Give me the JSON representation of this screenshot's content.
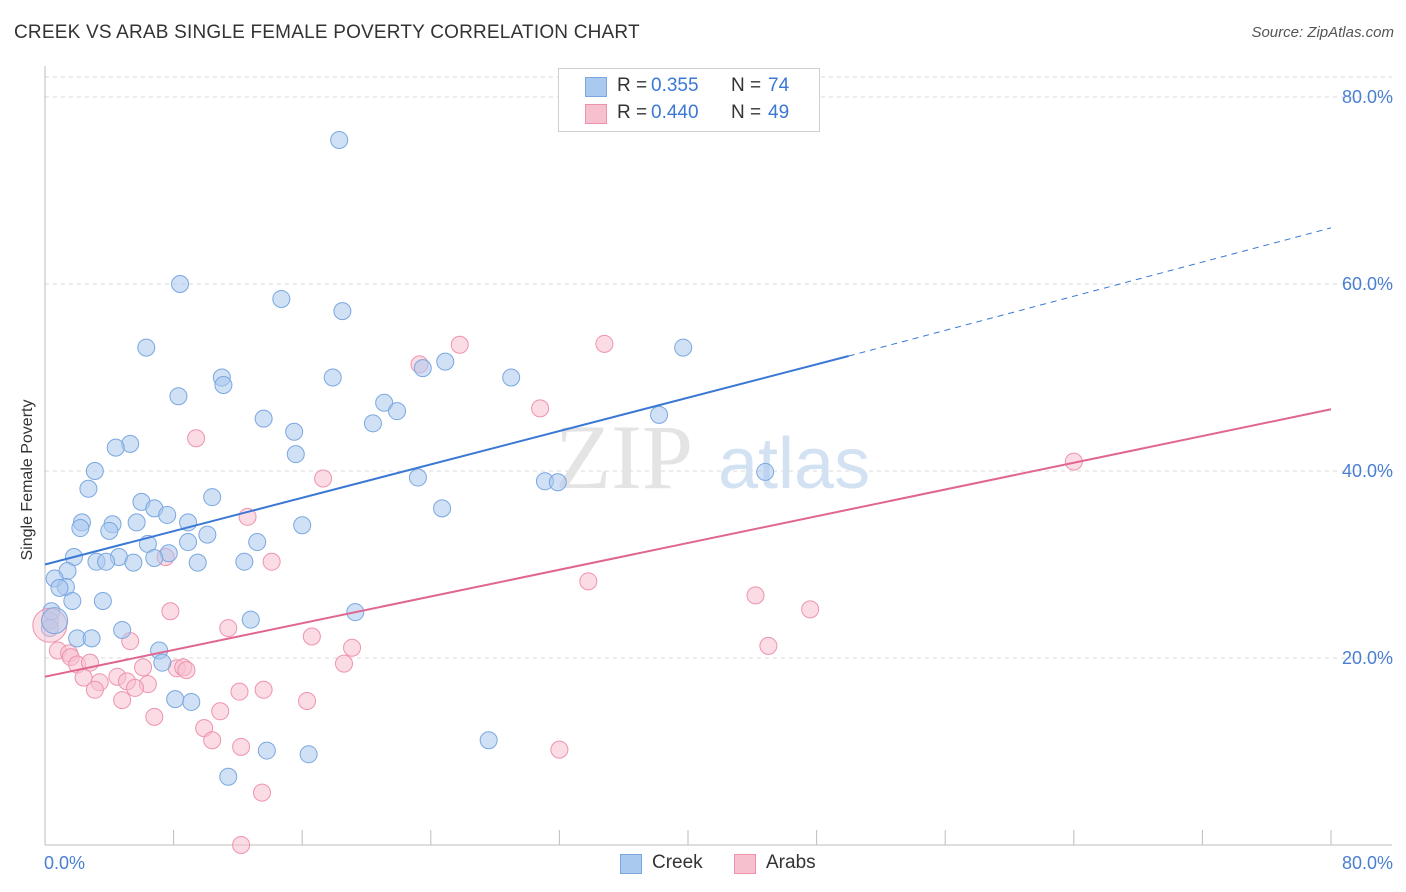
{
  "title": "CREEK VS ARAB SINGLE FEMALE POVERTY CORRELATION CHART",
  "source": "Source: ZipAtlas.com",
  "watermark": {
    "zip": "ZIP",
    "atlas": "atlas"
  },
  "legend_stats": [
    {
      "r_label": "R =",
      "r_value": "0.355",
      "n_label": "N =",
      "n_value": "74",
      "color": "#aac9ef",
      "stroke": "#7aa7e0"
    },
    {
      "r_label": "R =",
      "r_value": "0.440",
      "n_label": "N =",
      "n_value": "49",
      "color": "#f7c0cf",
      "stroke": "#ef93ad"
    }
  ],
  "bottom_legend": [
    {
      "label": "Creek",
      "color": "#aac9ef",
      "stroke": "#7aa7e0"
    },
    {
      "label": "Arabs",
      "color": "#f7c0cf",
      "stroke": "#ef93ad"
    }
  ],
  "chart_data": {
    "type": "scatter",
    "title": "CREEK VS ARAB SINGLE FEMALE POVERTY CORRELATION CHART",
    "xlabel": "",
    "ylabel": "Single Female Poverty",
    "xlim": [
      0,
      80
    ],
    "ylim": [
      0,
      80
    ],
    "x_tick_labels": [
      "0.0%",
      "80.0%"
    ],
    "y_ticks": [
      20,
      40,
      60,
      80
    ],
    "y_tick_labels": [
      "20.0%",
      "40.0%",
      "60.0%",
      "80.0%"
    ],
    "grid": true,
    "legend": "top-center",
    "colors": {
      "creek": "#3a78d4",
      "arabs": "#e0668f",
      "axis_text": "#4a7fd0"
    },
    "series": [
      {
        "name": "Creek",
        "color": "#aac9ef",
        "stroke": "#7aa7e0",
        "trend": {
          "x0": 0,
          "y0": 30.0,
          "x1": 50,
          "y1": 52.3,
          "dash_to_x": 80,
          "dash_to_y": 66.0,
          "color": "#3a78d4"
        },
        "points": [
          [
            18.3,
            75.4
          ],
          [
            8.4,
            60.0
          ],
          [
            14.7,
            58.4
          ],
          [
            18.5,
            57.1
          ],
          [
            6.3,
            53.2
          ],
          [
            39.7,
            53.2
          ],
          [
            11.0,
            50.0
          ],
          [
            17.9,
            50.0
          ],
          [
            29.0,
            50.0
          ],
          [
            11.1,
            49.2
          ],
          [
            23.5,
            51.0
          ],
          [
            24.9,
            51.7
          ],
          [
            8.3,
            48.0
          ],
          [
            21.1,
            47.3
          ],
          [
            21.9,
            46.4
          ],
          [
            38.2,
            46.0
          ],
          [
            13.6,
            45.6
          ],
          [
            20.4,
            45.1
          ],
          [
            15.5,
            44.2
          ],
          [
            5.3,
            42.9
          ],
          [
            4.4,
            42.5
          ],
          [
            15.6,
            41.8
          ],
          [
            3.1,
            40.0
          ],
          [
            44.8,
            39.9
          ],
          [
            23.2,
            39.3
          ],
          [
            31.1,
            38.9
          ],
          [
            31.9,
            38.8
          ],
          [
            2.7,
            38.1
          ],
          [
            10.4,
            37.2
          ],
          [
            6.0,
            36.7
          ],
          [
            24.7,
            36.0
          ],
          [
            6.8,
            36.0
          ],
          [
            7.6,
            35.3
          ],
          [
            2.3,
            34.5
          ],
          [
            4.2,
            34.3
          ],
          [
            8.9,
            34.5
          ],
          [
            16.0,
            34.2
          ],
          [
            5.7,
            34.5
          ],
          [
            2.2,
            33.9
          ],
          [
            4.0,
            33.6
          ],
          [
            10.1,
            33.2
          ],
          [
            8.9,
            32.4
          ],
          [
            13.2,
            32.4
          ],
          [
            6.4,
            32.2
          ],
          [
            7.7,
            31.2
          ],
          [
            1.8,
            30.8
          ],
          [
            6.8,
            30.7
          ],
          [
            4.6,
            30.8
          ],
          [
            3.2,
            30.3
          ],
          [
            3.8,
            30.3
          ],
          [
            5.5,
            30.2
          ],
          [
            9.5,
            30.2
          ],
          [
            12.4,
            30.3
          ],
          [
            1.4,
            29.3
          ],
          [
            0.6,
            28.5
          ],
          [
            1.3,
            27.6
          ],
          [
            0.9,
            27.5
          ],
          [
            1.7,
            26.1
          ],
          [
            3.6,
            26.1
          ],
          [
            0.4,
            25.0
          ],
          [
            19.3,
            24.9
          ],
          [
            12.8,
            24.1
          ],
          [
            4.8,
            23.0
          ],
          [
            0.3,
            23.2
          ],
          [
            2.0,
            22.1
          ],
          [
            2.9,
            22.1
          ],
          [
            7.1,
            20.8
          ],
          [
            7.3,
            19.5
          ],
          [
            8.1,
            15.6
          ],
          [
            9.1,
            15.3
          ],
          [
            13.8,
            10.1
          ],
          [
            16.4,
            9.7
          ],
          [
            27.6,
            11.2
          ],
          [
            11.4,
            7.3
          ]
        ]
      },
      {
        "name": "Arabs",
        "color": "#f7c0cf",
        "stroke": "#ef93ad",
        "trend": {
          "x0": 0,
          "y0": 18.0,
          "x1": 80,
          "y1": 46.6,
          "color": "#e0668f"
        },
        "points": [
          [
            25.8,
            53.5
          ],
          [
            34.8,
            53.6
          ],
          [
            23.3,
            51.4
          ],
          [
            30.8,
            46.7
          ],
          [
            9.4,
            43.5
          ],
          [
            64.0,
            41.0
          ],
          [
            17.3,
            39.2
          ],
          [
            12.6,
            35.1
          ],
          [
            7.5,
            30.8
          ],
          [
            14.1,
            30.3
          ],
          [
            33.8,
            28.2
          ],
          [
            44.2,
            26.7
          ],
          [
            47.6,
            25.2
          ],
          [
            7.8,
            25.0
          ],
          [
            11.4,
            23.2
          ],
          [
            16.6,
            22.3
          ],
          [
            5.3,
            21.8
          ],
          [
            45.0,
            21.3
          ],
          [
            19.1,
            21.1
          ],
          [
            0.3,
            24.0
          ],
          [
            0.8,
            20.8
          ],
          [
            1.5,
            20.5
          ],
          [
            1.6,
            20.1
          ],
          [
            2.0,
            19.3
          ],
          [
            2.8,
            19.5
          ],
          [
            18.6,
            19.4
          ],
          [
            6.1,
            19.0
          ],
          [
            8.2,
            18.9
          ],
          [
            8.6,
            19.0
          ],
          [
            8.8,
            18.7
          ],
          [
            4.5,
            18.0
          ],
          [
            2.4,
            17.9
          ],
          [
            5.1,
            17.5
          ],
          [
            6.4,
            17.2
          ],
          [
            3.4,
            17.4
          ],
          [
            5.6,
            16.8
          ],
          [
            3.1,
            16.6
          ],
          [
            12.1,
            16.4
          ],
          [
            13.6,
            16.6
          ],
          [
            4.8,
            15.5
          ],
          [
            16.3,
            15.4
          ],
          [
            10.9,
            14.3
          ],
          [
            6.8,
            13.7
          ],
          [
            9.9,
            12.5
          ],
          [
            10.4,
            11.2
          ],
          [
            12.2,
            10.5
          ],
          [
            32.0,
            10.2
          ],
          [
            13.5,
            5.6
          ],
          [
            12.2,
            0.0
          ]
        ]
      }
    ]
  }
}
